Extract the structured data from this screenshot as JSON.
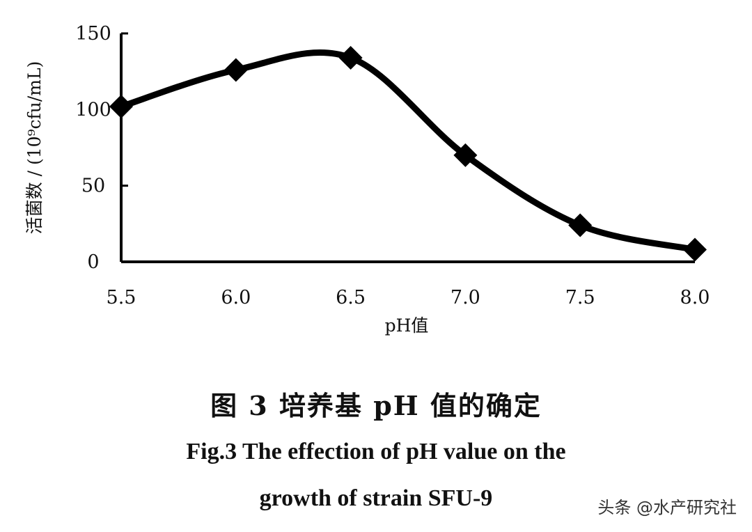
{
  "chart_data": {
    "type": "line",
    "x": [
      5.5,
      6.0,
      6.5,
      7.0,
      7.5,
      8.0
    ],
    "x_tick_labels": [
      "5.5",
      "6.0",
      "6.5",
      "7.0",
      "7.5",
      "8.0"
    ],
    "y": [
      102,
      126,
      134,
      70,
      24,
      8
    ],
    "y_ticks": [
      0,
      50,
      100,
      150
    ],
    "y_tick_labels": [
      "0",
      "50",
      "100",
      "150"
    ],
    "xlim": [
      5.5,
      8.0
    ],
    "ylim": [
      0,
      150
    ],
    "xlabel": "pH值",
    "ylabel": "活菌数 / (10⁹cfu/mL)",
    "marker": "diamond",
    "line_color": "#000000",
    "grid": false
  },
  "caption": {
    "cn": "图 3   培养基 pH 值的确定",
    "en_line1": "Fig.3   The effection of pH value on the",
    "en_line2": "growth of strain SFU-9"
  },
  "source_tag": "头条 @水产研究社"
}
